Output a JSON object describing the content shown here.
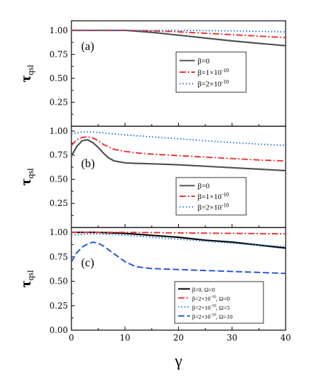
{
  "chart_data": [
    {
      "type": "line",
      "panel_label": "(a)",
      "ylabel": "τ",
      "ylabel_sub": "qsl",
      "xlim": [
        0,
        40
      ],
      "ylim": [
        0,
        1.1
      ],
      "yticks": [
        "0.25",
        "0.50",
        "0.75",
        "1.00"
      ],
      "legend_position": "center-right",
      "series": [
        {
          "name": "β=0",
          "color": "#505050",
          "style": "solid",
          "x": [
            0,
            5,
            10,
            15,
            20,
            25,
            30,
            35,
            40
          ],
          "y": [
            1.0,
            1.0,
            1.0,
            0.98,
            0.95,
            0.92,
            0.89,
            0.865,
            0.84
          ]
        },
        {
          "name": "β=1×10",
          "sup": "-10",
          "color": "#ee3333",
          "style": "dashdot",
          "x": [
            0,
            5,
            10,
            15,
            20,
            25,
            30,
            35,
            40
          ],
          "y": [
            1.0,
            1.0,
            1.0,
            0.995,
            0.985,
            0.97,
            0.955,
            0.94,
            0.925
          ]
        },
        {
          "name": "β=2×10",
          "sup": "-10",
          "color": "#1f77d4",
          "style": "dot",
          "x": [
            0,
            10,
            20,
            30,
            40
          ],
          "y": [
            1.0,
            1.0,
            1.0,
            0.995,
            0.985
          ]
        }
      ]
    },
    {
      "type": "line",
      "panel_label": "(b)",
      "ylabel": "τ",
      "ylabel_sub": "qsl",
      "xlim": [
        0,
        40
      ],
      "ylim": [
        0,
        1.05
      ],
      "yticks": [
        "0.25",
        "0.50",
        "0.75",
        "1.00"
      ],
      "legend_position": "bottom-right",
      "series": [
        {
          "name": "β=0",
          "color": "#505050",
          "style": "solid",
          "x": [
            0,
            1,
            2,
            3,
            4,
            5,
            6,
            7,
            8,
            10,
            12,
            15,
            20,
            25,
            30,
            35,
            40
          ],
          "y": [
            0.74,
            0.84,
            0.9,
            0.91,
            0.88,
            0.83,
            0.77,
            0.72,
            0.69,
            0.67,
            0.665,
            0.66,
            0.65,
            0.635,
            0.62,
            0.605,
            0.59
          ]
        },
        {
          "name": "β=1×10",
          "sup": "-10",
          "color": "#ee3333",
          "style": "dashdot",
          "x": [
            0,
            1,
            2,
            3,
            4,
            5,
            6,
            8,
            10,
            12,
            15,
            20,
            25,
            30,
            35,
            40
          ],
          "y": [
            0.85,
            0.91,
            0.935,
            0.94,
            0.93,
            0.9,
            0.86,
            0.81,
            0.79,
            0.775,
            0.76,
            0.745,
            0.73,
            0.715,
            0.7,
            0.69
          ]
        },
        {
          "name": "β=2×10",
          "sup": "-10",
          "color": "#1f77d4",
          "style": "dot",
          "x": [
            0,
            2,
            4,
            6,
            10,
            15,
            20,
            25,
            30,
            35,
            40
          ],
          "y": [
            0.97,
            0.99,
            0.99,
            0.98,
            0.96,
            0.94,
            0.92,
            0.9,
            0.88,
            0.865,
            0.85
          ]
        }
      ]
    },
    {
      "type": "line",
      "panel_label": "(c)",
      "ylabel": "τ",
      "ylabel_sub": "qsl",
      "xlabel": "γ",
      "xlim": [
        0,
        40
      ],
      "ylim": [
        0,
        1.05
      ],
      "xticks": [
        "0",
        "10",
        "20",
        "30",
        "40"
      ],
      "yticks": [
        "0.00",
        "0.25",
        "0.50",
        "0.75",
        "1.00"
      ],
      "legend_position": "bottom-right",
      "series": [
        {
          "name": "β=0, Ω=0",
          "color": "#000000",
          "style": "solid",
          "x": [
            0,
            3,
            5,
            10,
            15,
            20,
            25,
            30,
            35,
            40
          ],
          "y": [
            1.0,
            1.0,
            1.0,
            0.99,
            0.97,
            0.95,
            0.92,
            0.9,
            0.87,
            0.84
          ]
        },
        {
          "name": "β=2×10",
          "sup": "-10",
          "suffix": ", Ω=0",
          "color": "#ee3333",
          "style": "dashdot",
          "x": [
            0,
            10,
            20,
            30,
            40
          ],
          "y": [
            1.0,
            1.0,
            0.995,
            0.99,
            0.985
          ]
        },
        {
          "name": "β=2×10",
          "sup": "-10",
          "suffix": ", Ω=5",
          "color": "#1f77d4",
          "style": "dot",
          "x": [
            0,
            3,
            5,
            10,
            15,
            20,
            25,
            30,
            35,
            40
          ],
          "y": [
            0.97,
            0.985,
            0.985,
            0.97,
            0.95,
            0.93,
            0.91,
            0.89,
            0.87,
            0.855
          ]
        },
        {
          "name": "β=2×10",
          "sup": "-10",
          "suffix": ", Ω=10",
          "color": "#2255dd",
          "style": "dash",
          "x": [
            0,
            1,
            2,
            3,
            4,
            5,
            6,
            8,
            10,
            12,
            15,
            20,
            25,
            30,
            35,
            40
          ],
          "y": [
            0.7,
            0.79,
            0.85,
            0.88,
            0.9,
            0.89,
            0.86,
            0.78,
            0.7,
            0.65,
            0.63,
            0.62,
            0.61,
            0.6,
            0.59,
            0.58
          ]
        }
      ]
    }
  ]
}
